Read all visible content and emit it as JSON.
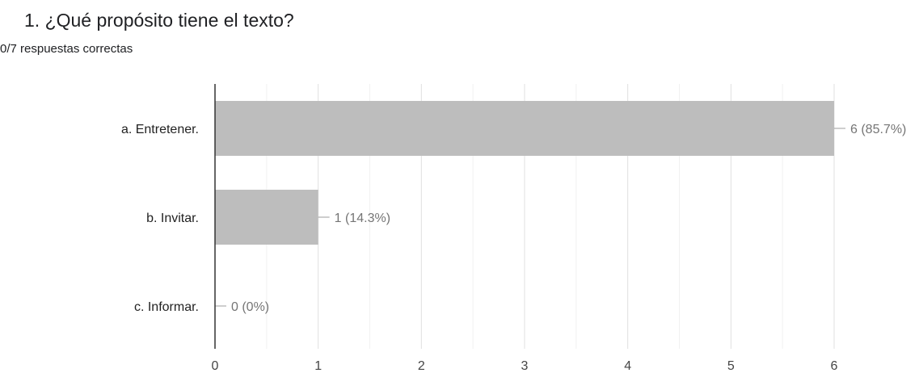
{
  "question": {
    "title": "1. ¿Qué propósito tiene el texto?",
    "summary": "0/7 respuestas correctas"
  },
  "chart_data": {
    "type": "bar",
    "orientation": "horizontal",
    "categories": [
      "a. Entretener.",
      "b. Invitar.",
      "c. Informar."
    ],
    "values": [
      6,
      1,
      0
    ],
    "data_labels": [
      "6 (85.7%)",
      "1 (14.3%)",
      "0 (0%)"
    ],
    "xlim": [
      0,
      6
    ],
    "x_ticks": [
      "0",
      "1",
      "2",
      "3",
      "4",
      "5",
      "6"
    ],
    "grid": true,
    "bar_color": "#bdbdbd",
    "label_color": "#757575"
  }
}
